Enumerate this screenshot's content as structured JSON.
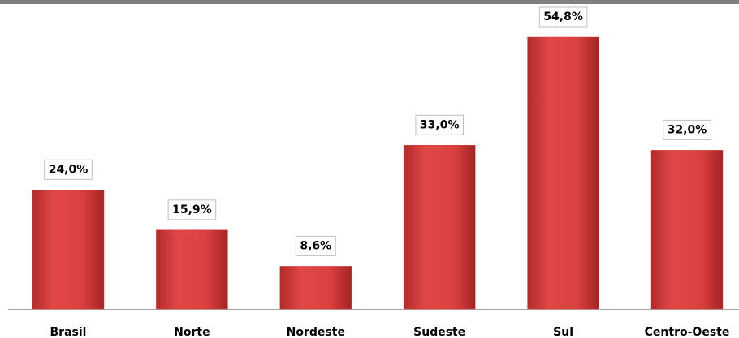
{
  "chart_data": {
    "type": "bar",
    "categories": [
      "Brasil",
      "Norte",
      "Nordeste",
      "Sudeste",
      "Sul",
      "Centro-Oeste"
    ],
    "values": [
      24.0,
      15.9,
      8.6,
      33.0,
      54.8,
      32.0
    ],
    "value_labels": [
      "24,0%",
      "15,9%",
      "8,6%",
      "33,0%",
      "54,8%",
      "32,0%"
    ],
    "color": "#d9403f"
  }
}
